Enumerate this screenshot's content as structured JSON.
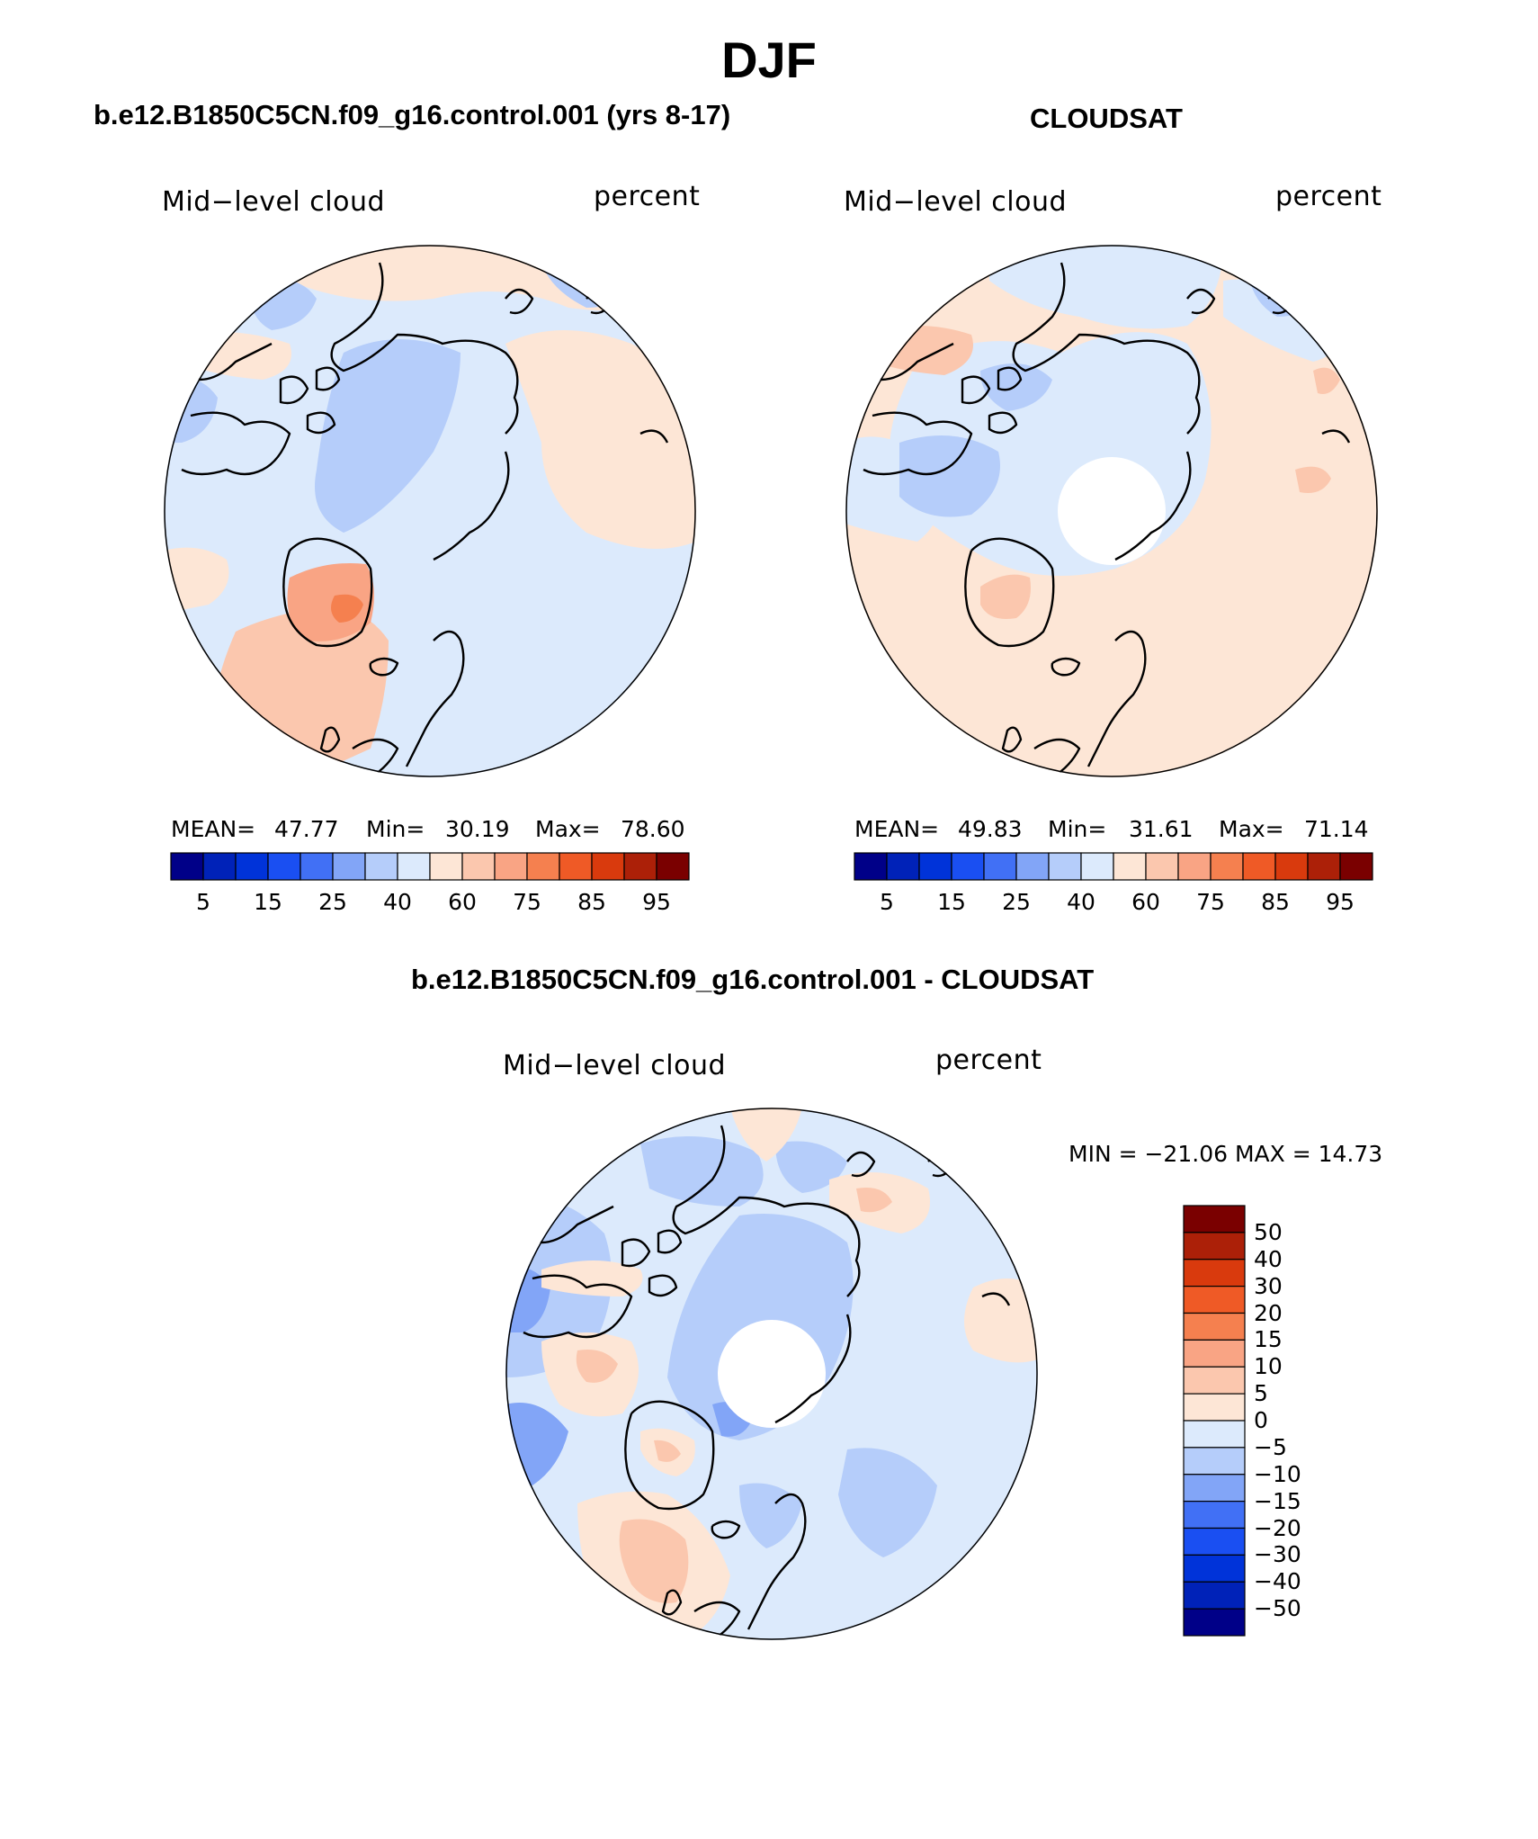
{
  "figure": {
    "title": "DJF"
  },
  "panels": {
    "model": {
      "title": "b.e12.B1850C5CN.f09_g16.control.001 (yrs 8-17)",
      "variable_label": "Mid−level cloud",
      "units_label": "percent",
      "stats": {
        "mean_label": "MEAN=",
        "mean_value": "47.77",
        "min_label": "Min=",
        "min_value": "30.19",
        "max_label": "Max=",
        "max_value": "78.60"
      },
      "colorbar": {
        "colors": [
          "#000088",
          "#0022b8",
          "#0033d9",
          "#1a4ff2",
          "#4170f5",
          "#82a5f7",
          "#b5cdfa",
          "#dceafc",
          "#fde6d6",
          "#fbc7ae",
          "#f9a484",
          "#f5804f",
          "#ef5a26",
          "#d93a0d",
          "#ac2008",
          "#7a0000"
        ],
        "tick_labels": [
          "5",
          "15",
          "25",
          "40",
          "60",
          "75",
          "85",
          "95"
        ]
      }
    },
    "obs": {
      "title": "CLOUDSAT",
      "variable_label": "Mid−level cloud",
      "units_label": "percent",
      "stats": {
        "mean_label": "MEAN=",
        "mean_value": "49.83",
        "min_label": "Min=",
        "min_value": "31.61",
        "max_label": "Max=",
        "max_value": "71.14"
      },
      "colorbar": {
        "colors": [
          "#000088",
          "#0022b8",
          "#0033d9",
          "#1a4ff2",
          "#4170f5",
          "#82a5f7",
          "#b5cdfa",
          "#dceafc",
          "#fde6d6",
          "#fbc7ae",
          "#f9a484",
          "#f5804f",
          "#ef5a26",
          "#d93a0d",
          "#ac2008",
          "#7a0000"
        ],
        "tick_labels": [
          "5",
          "15",
          "25",
          "40",
          "60",
          "75",
          "85",
          "95"
        ]
      }
    },
    "diff": {
      "title": "b.e12.B1850C5CN.f09_g16.control.001 - CLOUDSAT",
      "variable_label": "Mid−level cloud",
      "units_label": "percent",
      "minmax_text": "MIN = −21.06 MAX =   14.73",
      "colorbar": {
        "colors_top_to_bottom": [
          "#7a0000",
          "#ac2008",
          "#d93a0d",
          "#ef5a26",
          "#f5804f",
          "#f9a484",
          "#fbc7ae",
          "#fde6d6",
          "#dceafc",
          "#b5cdfa",
          "#82a5f7",
          "#4170f5",
          "#1a4ff2",
          "#0033d9",
          "#0022b8",
          "#000088"
        ],
        "tick_labels": [
          "50",
          "40",
          "30",
          "20",
          "15",
          "10",
          "5",
          "0",
          "−5",
          "−10",
          "−15",
          "−20",
          "−30",
          "−40",
          "−50"
        ]
      }
    }
  },
  "colors": {
    "land_outline": "#000000",
    "missing_data": "#ffffff",
    "light_blue": "#dceafc",
    "medium_blue": "#b5cdfa",
    "light_orange": "#fde6d6",
    "medium_orange": "#fbc7ae"
  }
}
